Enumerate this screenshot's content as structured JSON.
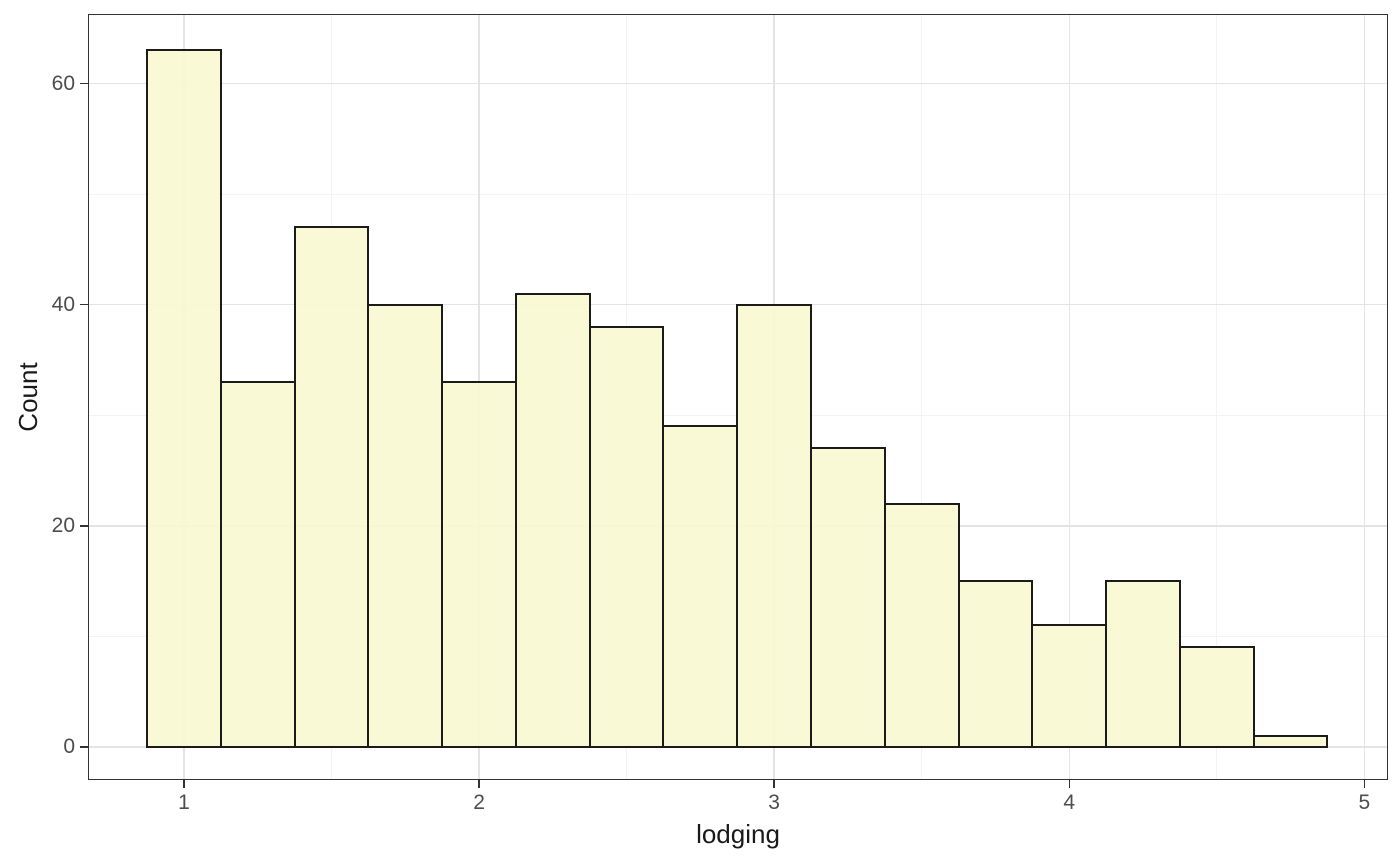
{
  "chart_data": {
    "type": "histogram",
    "title": "",
    "xlabel": "lodging",
    "ylabel": "Count",
    "bin_width": 0.25,
    "bin_centers": [
      1.0,
      1.25,
      1.5,
      1.75,
      2.0,
      2.25,
      2.5,
      2.75,
      3.0,
      3.25,
      3.5,
      3.75,
      4.0,
      4.25,
      4.5,
      4.75
    ],
    "counts": [
      63,
      33,
      47,
      40,
      33,
      41,
      38,
      29,
      40,
      27,
      22,
      15,
      11,
      15,
      9,
      1
    ],
    "x_ticks": [
      1,
      2,
      3,
      4,
      5
    ],
    "y_ticks": [
      0,
      20,
      40,
      60
    ],
    "x_minor_ticks": [
      1.5,
      2.5,
      3.5,
      4.5
    ],
    "y_minor_ticks": [
      10,
      30,
      50
    ],
    "xlim": [
      0.675,
      5.08
    ],
    "ylim": [
      -3.0,
      66.3
    ],
    "grid": "major+minor",
    "legend_position": "none",
    "colors": {
      "bar_fill": "rgba(250, 248, 208, 0.9)",
      "bar_stroke": "#1b1b1b",
      "grid_major": "#e4e4e4",
      "grid_minor": "#f3f3f3",
      "panel_border": "#333333",
      "tick_mark": "#333333",
      "tick_label": "#4d4d4d",
      "axis_title": "#1a1a1a",
      "background": "#ffffff"
    }
  }
}
